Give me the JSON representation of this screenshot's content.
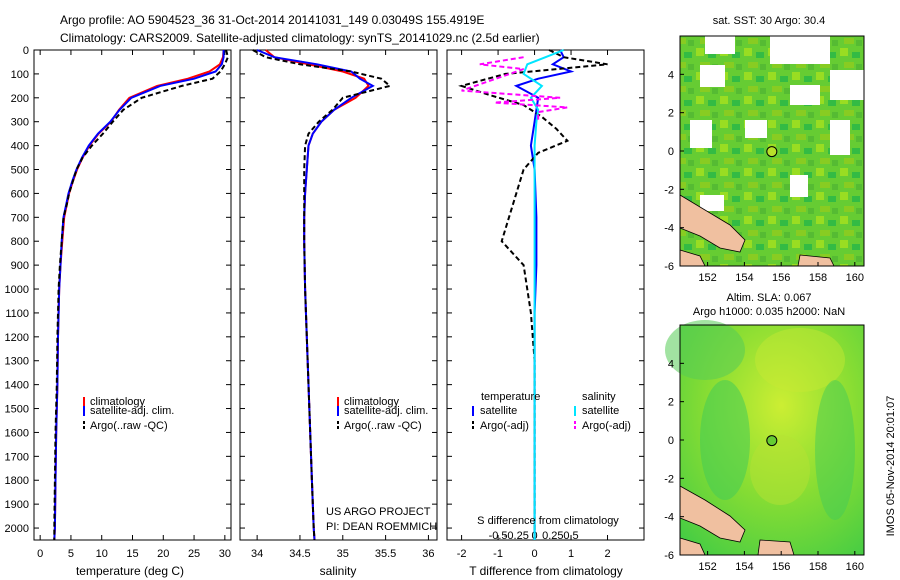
{
  "header": {
    "line1": "Argo profile: AO 5904523_36 31-Oct-2014 20141031_149 0.03049S 155.4919E",
    "line2": "Climatology: CARS2009. Satellite-adjusted climatology: synTS_20141029.nc (2.5d earlier)"
  },
  "credit": {
    "project": "US ARGO PROJECT",
    "pi": "PI: DEAN ROEMMICH"
  },
  "side_stamp": "IMOS 05-Nov-2014 20:01:07",
  "legend": {
    "climatology": "climatology",
    "satellite": "satellite-adj. clim.",
    "argo": "Argo(..raw -QC)"
  },
  "diff_legend": {
    "temperature_heading": "temperature",
    "salinity_heading": "salinity",
    "satellite": "satellite",
    "argo": "Argo(-adj)"
  },
  "colors": {
    "climatology": "#ff0000",
    "satellite": "#0000ff",
    "argo": "#000000",
    "salinity_satellite": "#00e5ff",
    "salinity_argo": "#ff00ff",
    "land": "#f0c0a0",
    "ocean_green": "#44cc22"
  },
  "chart_data": [
    {
      "type": "line",
      "name": "temperature-profile",
      "xlabel": "temperature (deg C)",
      "ylabel": "",
      "xlim": [
        -1,
        31
      ],
      "ylim": [
        2050,
        0
      ],
      "xticks": [
        0,
        5,
        10,
        15,
        20,
        25,
        30
      ],
      "yticks": [
        0,
        100,
        200,
        300,
        400,
        500,
        600,
        700,
        800,
        900,
        1000,
        1100,
        1200,
        1300,
        1400,
        1500,
        1600,
        1700,
        1800,
        1900,
        2000
      ],
      "series": [
        {
          "name": "climatology",
          "x": [
            29.8,
            29.7,
            29.2,
            27.5,
            24,
            19,
            14.5,
            12.8,
            11.5,
            9.5,
            8.0,
            6.9,
            6.0,
            5.3,
            4.7,
            4.3,
            3.9,
            3.6,
            3.3,
            3.1,
            2.9,
            2.8,
            2.6,
            2.5,
            2.4,
            2.3
          ],
          "y": [
            0,
            30,
            60,
            90,
            120,
            150,
            200,
            250,
            300,
            350,
            400,
            450,
            500,
            550,
            600,
            650,
            700,
            800,
            900,
            1000,
            1200,
            1400,
            1600,
            1800,
            2000,
            2050
          ]
        },
        {
          "name": "satellite-adj. clim.",
          "x": [
            29.8,
            29.8,
            29.5,
            28.5,
            25,
            19.5,
            14.8,
            12.9,
            11.4,
            9.4,
            7.9,
            6.8,
            5.9,
            5.2,
            4.6,
            4.2,
            3.8,
            3.5,
            3.3,
            3.1,
            2.9,
            2.8,
            2.6,
            2.5,
            2.4,
            2.3
          ],
          "y": [
            0,
            30,
            60,
            90,
            120,
            150,
            200,
            250,
            300,
            350,
            400,
            450,
            500,
            550,
            600,
            650,
            700,
            800,
            900,
            1000,
            1200,
            1400,
            1600,
            1800,
            2000,
            2050
          ]
        },
        {
          "name": "Argo(..raw -QC)",
          "x": [
            30.2,
            30.5,
            30.0,
            29.3,
            28,
            23,
            16.5,
            13.5,
            11.8,
            10.2,
            8.4,
            6.9,
            5.9,
            5.3,
            4.7,
            4.3,
            3.8,
            3.5,
            3.2,
            3.0,
            2.8,
            2.7,
            2.5,
            2.4,
            2.3,
            2.3
          ],
          "y": [
            0,
            30,
            60,
            90,
            120,
            150,
            200,
            250,
            300,
            350,
            400,
            450,
            500,
            550,
            600,
            650,
            700,
            800,
            900,
            1000,
            1200,
            1400,
            1600,
            1800,
            2000,
            2050
          ]
        }
      ]
    },
    {
      "type": "line",
      "name": "salinity-profile",
      "xlabel": "salinity",
      "xlim": [
        33.8,
        36.1
      ],
      "ylim": [
        2050,
        0
      ],
      "xticks": [
        34,
        34.5,
        35,
        35.5,
        36
      ],
      "series": [
        {
          "name": "climatology",
          "x": [
            34.1,
            34.2,
            34.6,
            35.0,
            35.25,
            35.3,
            35.15,
            34.9,
            34.75,
            34.65,
            34.6,
            34.58,
            34.56,
            34.55,
            34.55,
            34.56,
            34.58,
            34.6,
            34.62,
            34.64,
            34.66,
            34.67
          ],
          "y": [
            0,
            30,
            60,
            90,
            120,
            150,
            200,
            250,
            300,
            350,
            400,
            500,
            600,
            700,
            800,
            1000,
            1200,
            1400,
            1600,
            1800,
            2000,
            2050
          ]
        },
        {
          "name": "satellite-adj. clim.",
          "x": [
            34.0,
            34.2,
            34.7,
            35.1,
            35.2,
            35.35,
            35.1,
            34.9,
            34.75,
            34.65,
            34.6,
            34.58,
            34.56,
            34.55,
            34.55,
            34.56,
            34.58,
            34.6,
            34.62,
            34.64,
            34.66,
            34.67
          ],
          "y": [
            0,
            30,
            60,
            90,
            120,
            150,
            200,
            250,
            300,
            350,
            400,
            500,
            600,
            700,
            800,
            1000,
            1200,
            1400,
            1600,
            1800,
            2000,
            2050
          ]
        },
        {
          "name": "Argo(..raw -QC)",
          "x": [
            33.95,
            34.1,
            34.5,
            35.1,
            35.45,
            35.55,
            35.0,
            34.88,
            34.72,
            34.6,
            34.56,
            34.55,
            34.55,
            34.55,
            34.55,
            34.56,
            34.58,
            34.6,
            34.62,
            34.64,
            34.66,
            34.67
          ],
          "y": [
            0,
            30,
            60,
            90,
            120,
            150,
            200,
            250,
            300,
            350,
            400,
            500,
            600,
            700,
            800,
            1000,
            1200,
            1400,
            1600,
            1800,
            2000,
            2050
          ]
        }
      ]
    },
    {
      "type": "line",
      "name": "difference-from-climatology",
      "xlabel": "T difference from climatology",
      "x2label": "S difference from climatology",
      "xlim": [
        -2.4,
        3.0
      ],
      "ylim": [
        2050,
        0
      ],
      "xticks": [
        -2,
        -1,
        0,
        1,
        2
      ],
      "x2ticks": [
        -0.5,
        -0.25,
        0,
        0.25,
        0.5
      ],
      "series": [
        {
          "name": "temperature satellite",
          "x": [
            0.7,
            0.8,
            0.5,
            1.0,
            0.1,
            -0.5,
            0.1,
            0.05,
            0.0,
            -0.1,
            0.0,
            0.05,
            0.05,
            0.0,
            0.0,
            0.0,
            0.0,
            0.0
          ],
          "y": [
            0,
            30,
            60,
            90,
            120,
            150,
            200,
            250,
            300,
            400,
            500,
            700,
            900,
            1100,
            1400,
            1700,
            2000,
            2050
          ]
        },
        {
          "name": "temperature Argo(-adj)",
          "x": [
            0.4,
            0.8,
            2.0,
            -0.8,
            -2.0,
            -1.2,
            -0.3,
            0.2,
            0.6,
            0.9,
            0.1,
            -0.3,
            -0.5,
            -0.9,
            -0.3,
            -0.1,
            0.0,
            0.0,
            0.0,
            0.0,
            0.0
          ],
          "y": [
            0,
            30,
            60,
            100,
            150,
            190,
            230,
            280,
            330,
            380,
            430,
            500,
            600,
            800,
            900,
            1100,
            1300,
            1500,
            1800,
            2000,
            2050
          ]
        },
        {
          "name": "salinity satellite",
          "x": [
            0.8,
            0.3,
            -0.2,
            -0.3,
            0.2,
            -0.1,
            0.1,
            0.05,
            0.0,
            0.0,
            0.0,
            0.0,
            0.0,
            0.0
          ],
          "y": [
            0,
            30,
            60,
            100,
            150,
            200,
            250,
            300,
            400,
            600,
            900,
            1300,
            1700,
            2050
          ]
        },
        {
          "name": "salinity Argo(-adj)",
          "x": [
            -0.3,
            -1.5,
            -0.3,
            -2.0,
            0.7,
            -1.1,
            0.9,
            0.1,
            0.1
          ],
          "y": [
            30,
            60,
            80,
            170,
            200,
            220,
            240,
            260,
            300
          ]
        }
      ]
    },
    {
      "type": "heatmap",
      "name": "sst-map",
      "title": "sat. SST: 30 Argo: 30.4",
      "xlim": [
        150.5,
        160.5
      ],
      "ylim": [
        -6,
        6
      ],
      "xticks": [
        152,
        154,
        156,
        158,
        160
      ],
      "yticks": [
        -6,
        -4,
        -2,
        0,
        2,
        4
      ],
      "marker": {
        "lon": 155.49,
        "lat": -0.03
      }
    },
    {
      "type": "heatmap",
      "name": "sla-map",
      "title": "Altim. SLA: 0.067",
      "subtitle": "Argo h1000: 0.035 h2000: NaN",
      "xlim": [
        150.5,
        160.5
      ],
      "ylim": [
        -6,
        6
      ],
      "xticks": [
        152,
        154,
        156,
        158,
        160
      ],
      "yticks": [
        -6,
        -4,
        -2,
        0,
        2,
        4
      ],
      "marker": {
        "lon": 155.49,
        "lat": -0.03
      }
    }
  ]
}
